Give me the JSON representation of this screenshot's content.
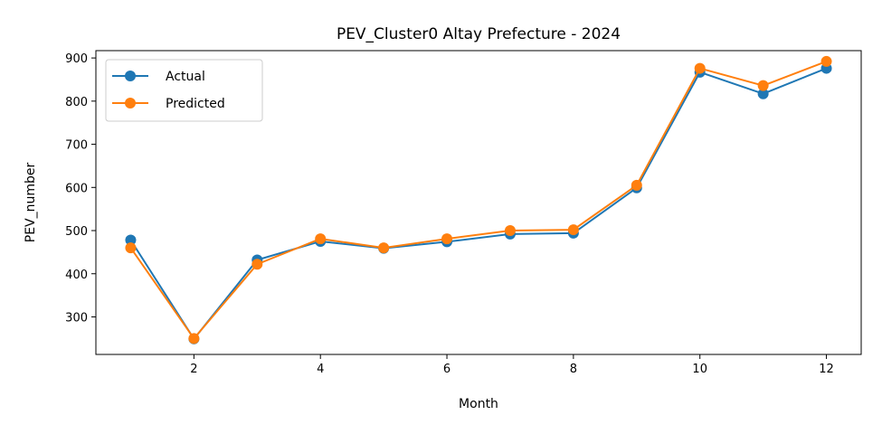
{
  "chart_data": {
    "type": "line",
    "title": "PEV_Cluster0 Altay Prefecture - 2024",
    "xlabel": "Month",
    "ylabel": "PEV_number",
    "x": [
      1,
      2,
      3,
      4,
      5,
      6,
      7,
      8,
      9,
      10,
      11,
      12
    ],
    "xlim": [
      0.45,
      12.55
    ],
    "ylim": [
      213,
      917
    ],
    "xticks": [
      2,
      4,
      6,
      8,
      10,
      12
    ],
    "yticks": [
      300,
      400,
      500,
      600,
      700,
      800,
      900
    ],
    "grid": false,
    "legend": "top-left",
    "series": [
      {
        "name": "Actual",
        "color": "#1f77b4",
        "marker": "circle",
        "values": [
          478,
          249,
          432,
          475,
          459,
          474,
          492,
          494,
          599,
          867,
          817,
          876
        ]
      },
      {
        "name": "Predicted",
        "color": "#ff7f0e",
        "marker": "circle",
        "values": [
          460,
          250,
          422,
          481,
          460,
          481,
          500,
          502,
          605,
          876,
          836,
          892
        ]
      }
    ]
  }
}
